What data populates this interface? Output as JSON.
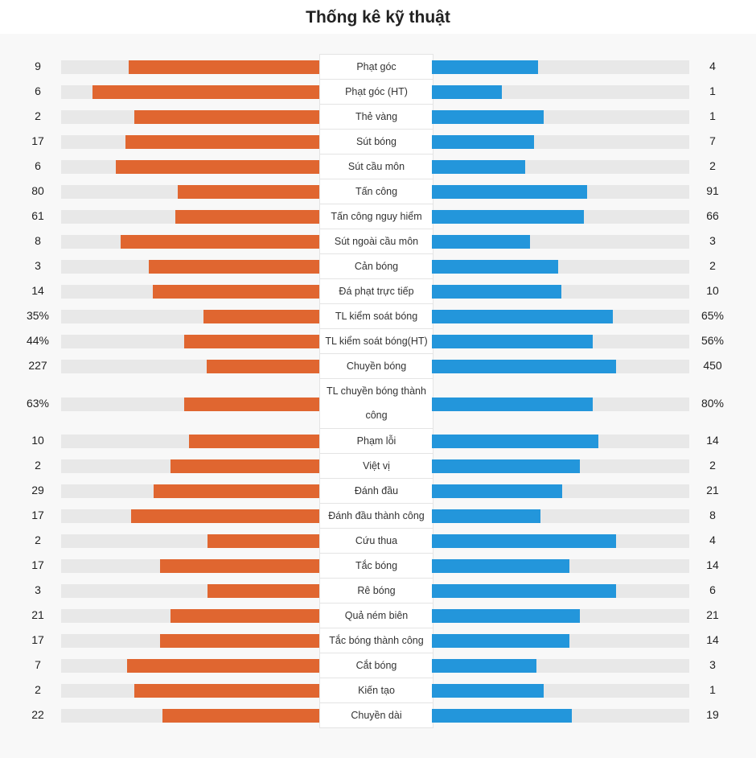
{
  "header": {
    "title": "Thống kê kỹ thuật"
  },
  "colors": {
    "home": "#e06630",
    "away": "#2396db",
    "track": "#e8e8e8"
  },
  "chart_data": {
    "type": "bar",
    "title": "Thống kê kỹ thuật",
    "series": [
      {
        "color": "#e06630",
        "side": "left"
      },
      {
        "color": "#2396db",
        "side": "right"
      }
    ],
    "stats": [
      {
        "label": "Phạt góc",
        "home": "9",
        "away": "4",
        "home_value": 9,
        "away_value": 4,
        "tall": false
      },
      {
        "label": "Phạt góc (HT)",
        "home": "6",
        "away": "1",
        "home_value": 6,
        "away_value": 1,
        "tall": false
      },
      {
        "label": "Thẻ vàng",
        "home": "2",
        "away": "1",
        "home_value": 2,
        "away_value": 1,
        "tall": false
      },
      {
        "label": "Sút bóng",
        "home": "17",
        "away": "7",
        "home_value": 17,
        "away_value": 7,
        "tall": false
      },
      {
        "label": "Sút cầu môn",
        "home": "6",
        "away": "2",
        "home_value": 6,
        "away_value": 2,
        "tall": false
      },
      {
        "label": "Tấn công",
        "home": "80",
        "away": "91",
        "home_value": 80,
        "away_value": 91,
        "tall": false
      },
      {
        "label": "Tấn công nguy hiểm",
        "home": "61",
        "away": "66",
        "home_value": 61,
        "away_value": 66,
        "tall": false
      },
      {
        "label": "Sút ngoài cầu môn",
        "home": "8",
        "away": "3",
        "home_value": 8,
        "away_value": 3,
        "tall": false
      },
      {
        "label": "Cản bóng",
        "home": "3",
        "away": "2",
        "home_value": 3,
        "away_value": 2,
        "tall": false
      },
      {
        "label": "Đá phạt trực tiếp",
        "home": "14",
        "away": "10",
        "home_value": 14,
        "away_value": 10,
        "tall": false
      },
      {
        "label": "TL kiểm soát bóng",
        "home": "35%",
        "away": "65%",
        "home_value": 35,
        "away_value": 65,
        "tall": false
      },
      {
        "label": "TL kiểm soát bóng(HT)",
        "home": "44%",
        "away": "56%",
        "home_value": 44,
        "away_value": 56,
        "tall": false
      },
      {
        "label": "Chuyền bóng",
        "home": "227",
        "away": "450",
        "home_value": 227,
        "away_value": 450,
        "tall": false
      },
      {
        "label": "TL chuyền bóng thành công",
        "home": "63%",
        "away": "80%",
        "home_value": 63,
        "away_value": 80,
        "tall": true
      },
      {
        "label": "Phạm lỗi",
        "home": "10",
        "away": "14",
        "home_value": 10,
        "away_value": 14,
        "tall": false
      },
      {
        "label": "Việt vị",
        "home": "2",
        "away": "2",
        "home_value": 2,
        "away_value": 2,
        "tall": false
      },
      {
        "label": "Đánh đầu",
        "home": "29",
        "away": "21",
        "home_value": 29,
        "away_value": 21,
        "tall": false
      },
      {
        "label": "Đánh đầu thành công",
        "home": "17",
        "away": "8",
        "home_value": 17,
        "away_value": 8,
        "tall": false
      },
      {
        "label": "Cứu thua",
        "home": "2",
        "away": "4",
        "home_value": 2,
        "away_value": 4,
        "tall": false
      },
      {
        "label": "Tắc bóng",
        "home": "17",
        "away": "14",
        "home_value": 17,
        "away_value": 14,
        "tall": false
      },
      {
        "label": "Rê bóng",
        "home": "3",
        "away": "6",
        "home_value": 3,
        "away_value": 6,
        "tall": false
      },
      {
        "label": "Quả ném biên",
        "home": "21",
        "away": "21",
        "home_value": 21,
        "away_value": 21,
        "tall": false
      },
      {
        "label": "Tắc bóng thành công",
        "home": "17",
        "away": "14",
        "home_value": 17,
        "away_value": 14,
        "tall": false
      },
      {
        "label": "Cắt bóng",
        "home": "7",
        "away": "3",
        "home_value": 7,
        "away_value": 3,
        "tall": false
      },
      {
        "label": "Kiến tạo",
        "home": "2",
        "away": "1",
        "home_value": 2,
        "away_value": 1,
        "tall": false
      },
      {
        "label": "Chuyền dài",
        "home": "22",
        "away": "19",
        "home_value": 22,
        "away_value": 19,
        "tall": false
      }
    ]
  }
}
